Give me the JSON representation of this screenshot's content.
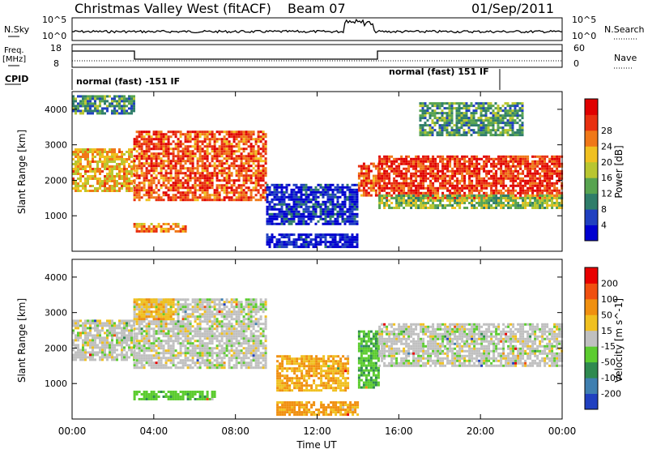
{
  "header": {
    "title": "Christmas Valley West (fitACF)",
    "beam": "Beam 07",
    "date": "01/Sep/2011"
  },
  "strips": {
    "nsky_label": "N.Sky",
    "nsky_ticks": [
      "10^5",
      "10^0"
    ],
    "nsearch_label": "N.Search",
    "nsearch_ticks": [
      "10^5",
      "10^0"
    ],
    "freq_label_1": "Freq.",
    "freq_label_2": "[MHz]",
    "freq_ticks": [
      "18",
      "8"
    ],
    "nave_label": "Nave",
    "nave_ticks": [
      "60",
      "0"
    ],
    "cpid_label": "CPID",
    "cpid_segments": [
      "normal (fast) -151 IF",
      "normal (fast) 151 IF"
    ]
  },
  "chart_data": [
    {
      "type": "heatmap",
      "title": "",
      "ylabel": "Slant Range [km]",
      "ylim": [
        0,
        4500
      ],
      "yticks": [
        "1000",
        "2000",
        "3000",
        "4000"
      ],
      "colorbar_label": "Power [dB]",
      "colorbar_ticks": [
        "4",
        "8",
        "12",
        "16",
        "20",
        "24",
        "28"
      ],
      "colorbar_colors": [
        "#0000d0",
        "#2040c0",
        "#2f7d6a",
        "#58a450",
        "#b9c630",
        "#f0c020",
        "#f07818",
        "#e83010",
        "#e00000"
      ],
      "regions": [
        {
          "t": [
            0.0,
            3.0
          ],
          "r": [
            1700,
            2900
          ],
          "level": 0.62
        },
        {
          "t": [
            3.0,
            9.5
          ],
          "r": [
            1450,
            3400
          ],
          "level": 0.8
        },
        {
          "t": [
            3.0,
            5.5
          ],
          "r": [
            550,
            800
          ],
          "level": 0.7
        },
        {
          "t": [
            9.5,
            14.0
          ],
          "r": [
            800,
            1900
          ],
          "level": 0.12
        },
        {
          "t": [
            9.5,
            14.0
          ],
          "r": [
            100,
            500
          ],
          "level": 0.06
        },
        {
          "t": [
            14.0,
            15.0
          ],
          "r": [
            1600,
            2500
          ],
          "level": 0.8
        },
        {
          "t": [
            15.0,
            24.0
          ],
          "r": [
            1500,
            2700
          ],
          "level": 0.85
        },
        {
          "t": [
            15.0,
            24.0
          ],
          "r": [
            1250,
            1600
          ],
          "level": 0.45
        },
        {
          "t": [
            17.0,
            22.0
          ],
          "r": [
            3300,
            4200
          ],
          "level": 0.35
        },
        {
          "t": [
            0.0,
            3.0
          ],
          "r": [
            3900,
            4400
          ],
          "level": 0.3
        }
      ]
    },
    {
      "type": "heatmap",
      "title": "",
      "xlabel": "Time UT",
      "ylabel": "Slant Range [km]",
      "xlim": [
        "00:00",
        "24:00"
      ],
      "ylim": [
        0,
        4500
      ],
      "xticks": [
        "00:00",
        "04:00",
        "08:00",
        "12:00",
        "16:00",
        "20:00",
        "00:00"
      ],
      "yticks": [
        "1000",
        "2000",
        "3000",
        "4000"
      ],
      "colorbar_label": "Velocity [m s^-1]",
      "colorbar_ticks": [
        "200",
        "100",
        "50",
        "15",
        "-15",
        "-50",
        "-100",
        "-200"
      ],
      "colorbar_colors": [
        "#2040c0",
        "#3f7fb0",
        "#2f8a50",
        "#5ccc30",
        "#c0c0c0",
        "#f0c020",
        "#f09010",
        "#f05010",
        "#e80000"
      ],
      "regions": [
        {
          "t": [
            0.0,
            3.0
          ],
          "r": [
            1700,
            2800
          ],
          "vel": 0
        },
        {
          "t": [
            3.0,
            9.5
          ],
          "r": [
            1450,
            3400
          ],
          "vel": 0
        },
        {
          "t": [
            3.0,
            5.0
          ],
          "r": [
            2800,
            3400
          ],
          "vel": -40
        },
        {
          "t": [
            10.0,
            13.5
          ],
          "r": [
            800,
            1800
          ],
          "vel": -50
        },
        {
          "t": [
            10.0,
            14.0
          ],
          "r": [
            100,
            500
          ],
          "vel": -60
        },
        {
          "t": [
            14.0,
            15.0
          ],
          "r": [
            900,
            2500
          ],
          "vel": 40
        },
        {
          "t": [
            15.0,
            24.0
          ],
          "r": [
            1500,
            2700
          ],
          "vel": 0
        },
        {
          "t": [
            3.0,
            7.0
          ],
          "r": [
            550,
            800
          ],
          "vel": 35
        }
      ]
    }
  ],
  "time_axis_label": "Time UT"
}
